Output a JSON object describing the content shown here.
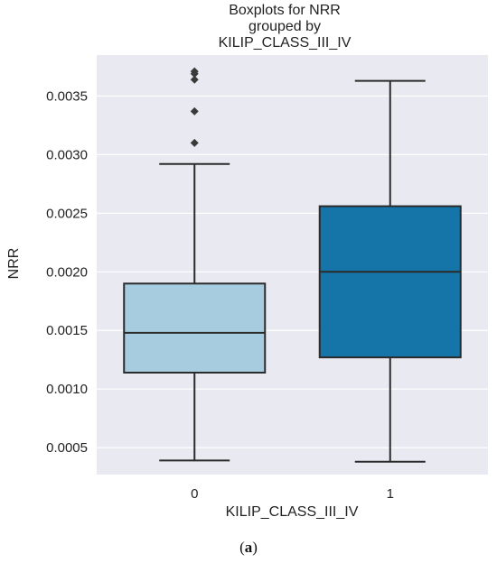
{
  "chart_data": {
    "type": "box",
    "title_lines": [
      "Boxplots for NRR",
      "grouped by",
      "KILIP_CLASS_III_IV"
    ],
    "xlabel": "KILIP_CLASS_III_IV",
    "ylabel": "NRR",
    "ylim": [
      0.00027,
      0.00385
    ],
    "yticks": [
      0.0005,
      0.001,
      0.0015,
      0.002,
      0.0025,
      0.003,
      0.0035
    ],
    "ytick_labels": [
      "0.0005",
      "0.0010",
      "0.0015",
      "0.0020",
      "0.0025",
      "0.0030",
      "0.0035"
    ],
    "categories": [
      "0",
      "1"
    ],
    "grid": true,
    "background": "#e9e9f1",
    "grid_color": "#ffffff",
    "boxes": [
      {
        "category": "0",
        "whisker_low": 0.00039,
        "q1": 0.00114,
        "median": 0.00148,
        "q3": 0.0019,
        "whisker_high": 0.00292,
        "outliers": [
          0.00371,
          0.00369,
          0.00364,
          0.00337,
          0.0031
        ],
        "color": "#a7cce0"
      },
      {
        "category": "1",
        "whisker_low": 0.00038,
        "q1": 0.00127,
        "median": 0.002,
        "q3": 0.00256,
        "whisker_high": 0.00363,
        "outliers": [],
        "color": "#1574a8"
      }
    ]
  },
  "caption": {
    "open": "(",
    "letter": "a",
    "close": ")"
  }
}
